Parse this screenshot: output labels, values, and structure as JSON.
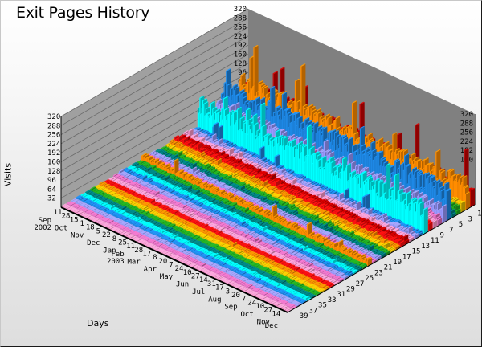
{
  "chart_data": {
    "type": "bar",
    "subtype": "3d-stacked-depth-bars",
    "title": "Exit Pages History",
    "xlabel": "Days",
    "ylabel": "Visits",
    "zlabel": "Page rank",
    "ylim": [
      0,
      320
    ],
    "y_ticks": [
      32,
      64,
      96,
      128,
      160,
      192,
      224,
      256,
      288,
      320
    ],
    "right_y_ticks": [
      160,
      192,
      224,
      256,
      288,
      320
    ],
    "back_y_ticks": [
      64,
      96,
      128,
      160,
      192,
      224,
      256,
      288,
      320
    ],
    "grid": true,
    "legend": "none",
    "x_tick_labels": [
      {
        "day": "11",
        "month": "Sep",
        "year": "2002"
      },
      {
        "day": "28",
        "month": ""
      },
      {
        "day": "15",
        "month": "Oct"
      },
      {
        "day": "1",
        "month": ""
      },
      {
        "day": "18",
        "month": "Nov"
      },
      {
        "day": "5",
        "month": ""
      },
      {
        "day": "22",
        "month": "Dec"
      },
      {
        "day": "8",
        "month": ""
      },
      {
        "day": "25",
        "month": "Jan"
      },
      {
        "day": "11",
        "month": "Feb",
        "year": "2003"
      },
      {
        "day": "28",
        "month": ""
      },
      {
        "day": "17",
        "month": "Mar"
      },
      {
        "day": "8",
        "month": ""
      },
      {
        "day": "20",
        "month": "Apr"
      },
      {
        "day": "7",
        "month": ""
      },
      {
        "day": "24",
        "month": "May"
      },
      {
        "day": "10",
        "month": ""
      },
      {
        "day": "27",
        "month": "Jun"
      },
      {
        "day": "14",
        "month": ""
      },
      {
        "day": "31",
        "month": "Jul"
      },
      {
        "day": "17",
        "month": ""
      },
      {
        "day": "3",
        "month": "Aug"
      },
      {
        "day": "20",
        "month": ""
      },
      {
        "day": "7",
        "month": "Sep"
      },
      {
        "day": "24",
        "month": ""
      },
      {
        "day": "10",
        "month": "Oct"
      },
      {
        "day": "27",
        "month": ""
      },
      {
        "day": "14",
        "month": "Nov"
      },
      {
        "day": "",
        "month": "Dec"
      }
    ],
    "z_tick_labels": [
      "1",
      "3",
      "5",
      "7",
      "9",
      "11",
      "13",
      "15",
      "17",
      "19",
      "21",
      "23",
      "25",
      "27",
      "29",
      "31",
      "33",
      "35",
      "37",
      "39"
    ],
    "series": [
      {
        "rank": 1,
        "color": "#cc0000",
        "avg": 70,
        "peak": 210
      },
      {
        "rank": 2,
        "color": "#ff8c00",
        "avg": 95,
        "peak": 240
      },
      {
        "rank": 3,
        "color": "#e8c000",
        "avg": 30,
        "peak": 60
      },
      {
        "rank": 4,
        "color": "#22aa22",
        "avg": 25,
        "peak": 55
      },
      {
        "rank": 5,
        "color": "#008080",
        "avg": 20,
        "peak": 45
      },
      {
        "rank": 6,
        "color": "#1e88e5",
        "avg": 110,
        "peak": 185
      },
      {
        "rank": 7,
        "color": "#9999ff",
        "avg": 55,
        "peak": 95
      },
      {
        "rank": 8,
        "color": "#e070c0",
        "avg": 35,
        "peak": 70
      },
      {
        "rank": 9,
        "color": "#ff99cc",
        "avg": 30,
        "peak": 60
      },
      {
        "rank": 10,
        "color": "#ff1010",
        "avg": 25,
        "peak": 45
      },
      {
        "rank": 11,
        "color": "#00ffff",
        "avg": 100,
        "peak": 190
      },
      {
        "rank": 12,
        "color": "#1e88e5",
        "avg": 12,
        "peak": 60
      },
      {
        "rank": 13,
        "color": "#9999ff",
        "avg": 15,
        "peak": 35
      },
      {
        "rank": 14,
        "color": "#ff99cc",
        "avg": 14,
        "peak": 30
      },
      {
        "rank": 15,
        "color": "#cc0000",
        "avg": 14,
        "peak": 28
      },
      {
        "rank": 16,
        "color": "#ff1010",
        "avg": 16,
        "peak": 30
      },
      {
        "rank": 17,
        "color": "#ff8c00",
        "avg": 12,
        "peak": 25
      },
      {
        "rank": 18,
        "color": "#e8c000",
        "avg": 10,
        "peak": 22
      },
      {
        "rank": 19,
        "color": "#22aa22",
        "avg": 10,
        "peak": 20
      },
      {
        "rank": 20,
        "color": "#008080",
        "avg": 10,
        "peak": 20
      },
      {
        "rank": 21,
        "color": "#9999ff",
        "avg": 10,
        "peak": 22
      },
      {
        "rank": 22,
        "color": "#e070c0",
        "avg": 8,
        "peak": 18
      },
      {
        "rank": 23,
        "color": "#ff8c00",
        "avg": 20,
        "peak": 55
      },
      {
        "rank": 24,
        "color": "#22aa22",
        "avg": 8,
        "peak": 16
      },
      {
        "rank": 25,
        "color": "#008080",
        "avg": 8,
        "peak": 16
      },
      {
        "rank": 26,
        "color": "#00ffff",
        "avg": 7,
        "peak": 14
      },
      {
        "rank": 27,
        "color": "#1e88e5",
        "avg": 7,
        "peak": 14
      },
      {
        "rank": 28,
        "color": "#9999ff",
        "avg": 7,
        "peak": 14
      },
      {
        "rank": 29,
        "color": "#e070c0",
        "avg": 6,
        "peak": 12
      },
      {
        "rank": 30,
        "color": "#ff99cc",
        "avg": 6,
        "peak": 12
      },
      {
        "rank": 31,
        "color": "#ff1010",
        "avg": 6,
        "peak": 12
      },
      {
        "rank": 32,
        "color": "#ff8c00",
        "avg": 6,
        "peak": 12
      },
      {
        "rank": 33,
        "color": "#e8c000",
        "avg": 5,
        "peak": 10
      },
      {
        "rank": 34,
        "color": "#22aa22",
        "avg": 5,
        "peak": 10
      },
      {
        "rank": 35,
        "color": "#008080",
        "avg": 5,
        "peak": 10
      },
      {
        "rank": 36,
        "color": "#00ffff",
        "avg": 5,
        "peak": 10
      },
      {
        "rank": 37,
        "color": "#1e88e5",
        "avg": 5,
        "peak": 10
      },
      {
        "rank": 38,
        "color": "#9999ff",
        "avg": 4,
        "peak": 8
      },
      {
        "rank": 39,
        "color": "#e070c0",
        "avg": 4,
        "peak": 8
      },
      {
        "rank": 40,
        "color": "#ff99cc",
        "avg": 4,
        "peak": 8
      }
    ]
  },
  "colors": {
    "wall": "#a0a0a0",
    "back_wall": "#808080",
    "gridline": "#6a6a6a"
  }
}
